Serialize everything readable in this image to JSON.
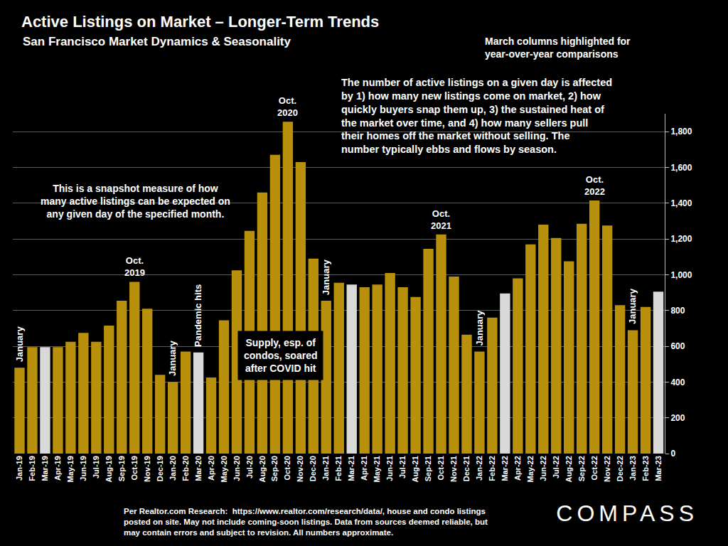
{
  "chart_data": {
    "type": "bar",
    "title": "Active Listings on Market – Longer-Term Trends",
    "subtitle": "San Francisco Market Dynamics & Seasonality",
    "categories": [
      "Jan-19",
      "Feb-19",
      "Mar-19",
      "Apr-19",
      "May-19",
      "Jun-19",
      "Jul-19",
      "Aug-19",
      "Sep-19",
      "Oct-19",
      "Nov-19",
      "Dec-19",
      "Jan-20",
      "Feb-20",
      "Mar-20",
      "Apr-20",
      "May-20",
      "Jun-20",
      "Jul-20",
      "Aug-20",
      "Sep-20",
      "Oct-20",
      "Nov-20",
      "Dec-20",
      "Jan-21",
      "Feb-21",
      "Mar-21",
      "Apr-21",
      "May-21",
      "Jun-21",
      "Jul-21",
      "Aug-21",
      "Sep-21",
      "Oct-21",
      "Nov-21",
      "Dec-21",
      "Jan-22",
      "Feb-22",
      "Mar-22",
      "Apr-22",
      "May-22",
      "Jun-22",
      "Jul-22",
      "Aug-22",
      "Sep-22",
      "Oct-22",
      "Nov-22",
      "Dec-22",
      "Jan-23",
      "Feb-23",
      "Mar-23"
    ],
    "values": [
      480,
      595,
      595,
      595,
      625,
      675,
      625,
      715,
      855,
      960,
      810,
      440,
      400,
      570,
      565,
      425,
      745,
      1025,
      1245,
      1460,
      1670,
      1855,
      1630,
      1090,
      855,
      955,
      945,
      930,
      945,
      1010,
      930,
      875,
      1145,
      1225,
      990,
      665,
      570,
      760,
      895,
      980,
      1170,
      1280,
      1205,
      1075,
      1285,
      1415,
      1275,
      830,
      690,
      820,
      905
    ],
    "colors": [
      "#B8900B",
      "#B8900B",
      "#D9D9D9",
      "#B8900B",
      "#B8900B",
      "#B8900B",
      "#B8900B",
      "#B8900B",
      "#B8900B",
      "#B8900B",
      "#B8900B",
      "#B8900B",
      "#B8900B",
      "#B8900B",
      "#D9D9D9",
      "#B8900B",
      "#B8900B",
      "#B8900B",
      "#B8900B",
      "#B8900B",
      "#B8900B",
      "#B8900B",
      "#B8900B",
      "#B8900B",
      "#B8900B",
      "#B8900B",
      "#D9D9D9",
      "#B8900B",
      "#B8900B",
      "#B8900B",
      "#B8900B",
      "#B8900B",
      "#B8900B",
      "#B8900B",
      "#B8900B",
      "#B8900B",
      "#B8900B",
      "#B8900B",
      "#D9D9D9",
      "#B8900B",
      "#B8900B",
      "#B8900B",
      "#B8900B",
      "#B8900B",
      "#B8900B",
      "#B8900B",
      "#B8900B",
      "#B8900B",
      "#B8900B",
      "#B8900B",
      "#D9D9D9"
    ],
    "ylim": [
      0,
      1900
    ],
    "yticks": [
      0,
      200,
      400,
      600,
      800,
      {
        "value": 1000,
        "label": "1,000"
      },
      {
        "value": 1200,
        "label": "1,200"
      },
      {
        "value": 1400,
        "label": "1,400"
      },
      {
        "value": 1600,
        "label": "1,600"
      },
      {
        "value": 1800,
        "label": "1,800"
      }
    ],
    "grid": true,
    "annotations": [
      {
        "text": [
          "January"
        ],
        "category": "Jan-19"
      },
      {
        "text": [
          "January"
        ],
        "category": "Jan-20"
      },
      {
        "text": [
          "January"
        ],
        "category": "Jan-21"
      },
      {
        "text": [
          "January"
        ],
        "category": "Jan-22"
      },
      {
        "text": [
          "January"
        ],
        "category": "Jan-23"
      },
      {
        "text": [
          "Pandemic hits"
        ],
        "category": "Mar-20"
      },
      {
        "text": [
          "Oct.",
          "2019"
        ],
        "category": "Oct-19"
      },
      {
        "text": [
          "Oct.",
          "2020"
        ],
        "category": "Oct-20"
      },
      {
        "text": [
          "Oct.",
          "2021"
        ],
        "category": "Oct-21"
      },
      {
        "text": [
          "Oct.",
          "2022"
        ],
        "category": "Oct-22"
      }
    ],
    "notes": [
      {
        "text": [
          "March columns highlighted for",
          "year-over-year comparisons"
        ]
      },
      {
        "text": [
          "The number of active listings on a given day is affected",
          "by 1) how many new listings come on market, 2) how",
          "quickly buyers snap them up, 3) the sustained heat of",
          "the market over time, and 4) how many sellers pull",
          "their homes off the market without selling. The",
          "number typically ebbs and flows by season."
        ]
      },
      {
        "text": [
          "This is a snapshot measure of how",
          "many active listings can be expected on",
          "any given day of the specified month."
        ]
      },
      {
        "text": [
          "Supply, esp. of",
          "condos, soared",
          "after COVID hit"
        ]
      },
      {
        "text": [
          "Per Realtor.com Research:  https://www.realtor.com/research/data/, house and condo listings",
          "posted on site. May not include coming-soon listings. Data from sources deemed reliable, but",
          "may contain errors and subject to revision. All numbers approximate."
        ]
      }
    ],
    "logo": "COMPASS"
  }
}
